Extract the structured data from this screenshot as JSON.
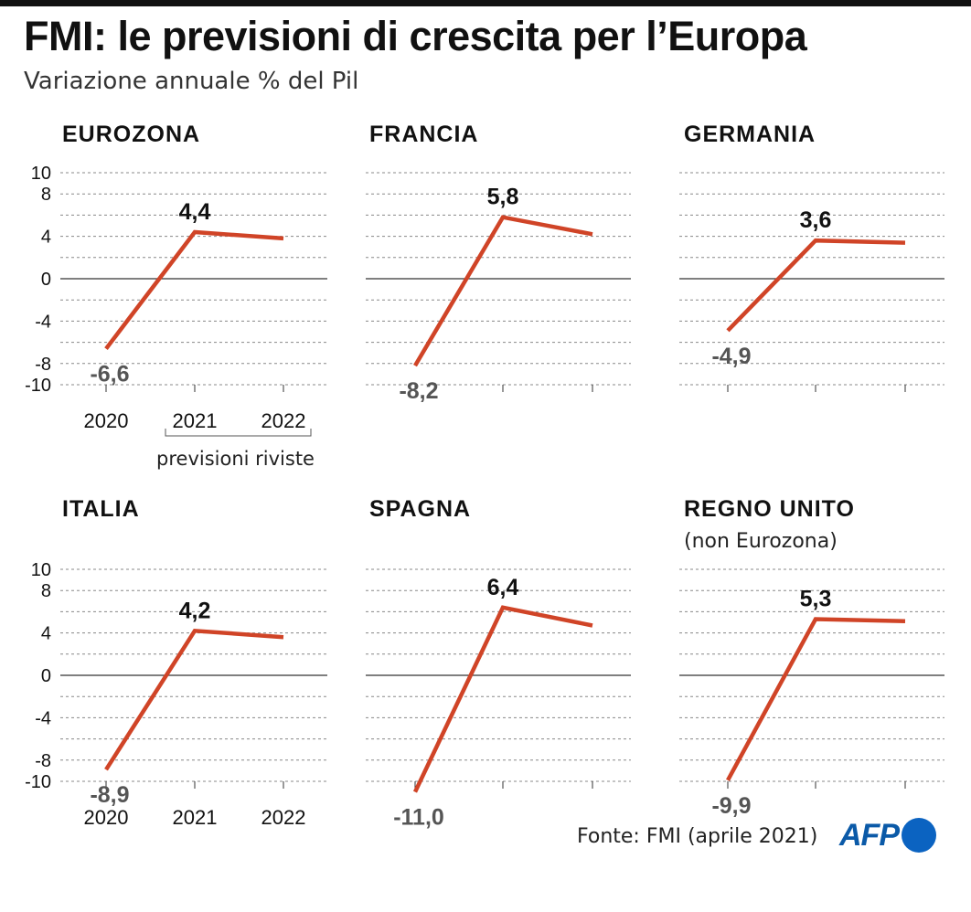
{
  "title": "FMI: le previsioni di crescita per l’Europa",
  "subtitle": "Variazione annuale % del Pil",
  "source": "Fonte: FMI (aprile 2021)",
  "logo_text": "AFP",
  "note": "previsioni riviste",
  "colors": {
    "line": "#d04427",
    "grid": "#888888",
    "text": "#111111",
    "negative_label": "#555555",
    "logo": "#0b63c1"
  },
  "chart_data": [
    {
      "type": "line",
      "title": "EUROZONA",
      "x": [
        "2020",
        "2021",
        "2022"
      ],
      "values": [
        -6.6,
        4.4,
        3.8
      ],
      "labels": [
        "-6,6",
        "4,4"
      ],
      "ylim": [
        -10,
        10
      ],
      "yticks": [
        "10",
        "8",
        "4",
        "0",
        "-4",
        "-8",
        "-10"
      ],
      "grid": true
    },
    {
      "type": "line",
      "title": "FRANCIA",
      "x": [
        "2020",
        "2021",
        "2022"
      ],
      "values": [
        -8.2,
        5.8,
        4.2
      ],
      "labels": [
        "-8,2",
        "5,8"
      ],
      "ylim": [
        -10,
        10
      ],
      "grid": true
    },
    {
      "type": "line",
      "title": "GERMANIA",
      "x": [
        "2020",
        "2021",
        "2022"
      ],
      "values": [
        -4.9,
        3.6,
        3.4
      ],
      "labels": [
        "-4,9",
        "3,6"
      ],
      "ylim": [
        -10,
        10
      ],
      "grid": true
    },
    {
      "type": "line",
      "title": "ITALIA",
      "x": [
        "2020",
        "2021",
        "2022"
      ],
      "values": [
        -8.9,
        4.2,
        3.6
      ],
      "labels": [
        "-8,9",
        "4,2"
      ],
      "ylim": [
        -10,
        10
      ],
      "yticks": [
        "10",
        "8",
        "4",
        "0",
        "-4",
        "-8",
        "-10"
      ],
      "grid": true
    },
    {
      "type": "line",
      "title": "SPAGNA",
      "x": [
        "2020",
        "2021",
        "2022"
      ],
      "values": [
        -11.0,
        6.4,
        4.7
      ],
      "labels": [
        "-11,0",
        "6,4"
      ],
      "ylim": [
        -10,
        10
      ],
      "grid": true
    },
    {
      "type": "line",
      "title": "REGNO UNITO",
      "subtitle": "(non Eurozona)",
      "x": [
        "2020",
        "2021",
        "2022"
      ],
      "values": [
        -9.9,
        5.3,
        5.1
      ],
      "labels": [
        "-9,9",
        "5,3"
      ],
      "ylim": [
        -10,
        10
      ],
      "grid": true
    }
  ]
}
